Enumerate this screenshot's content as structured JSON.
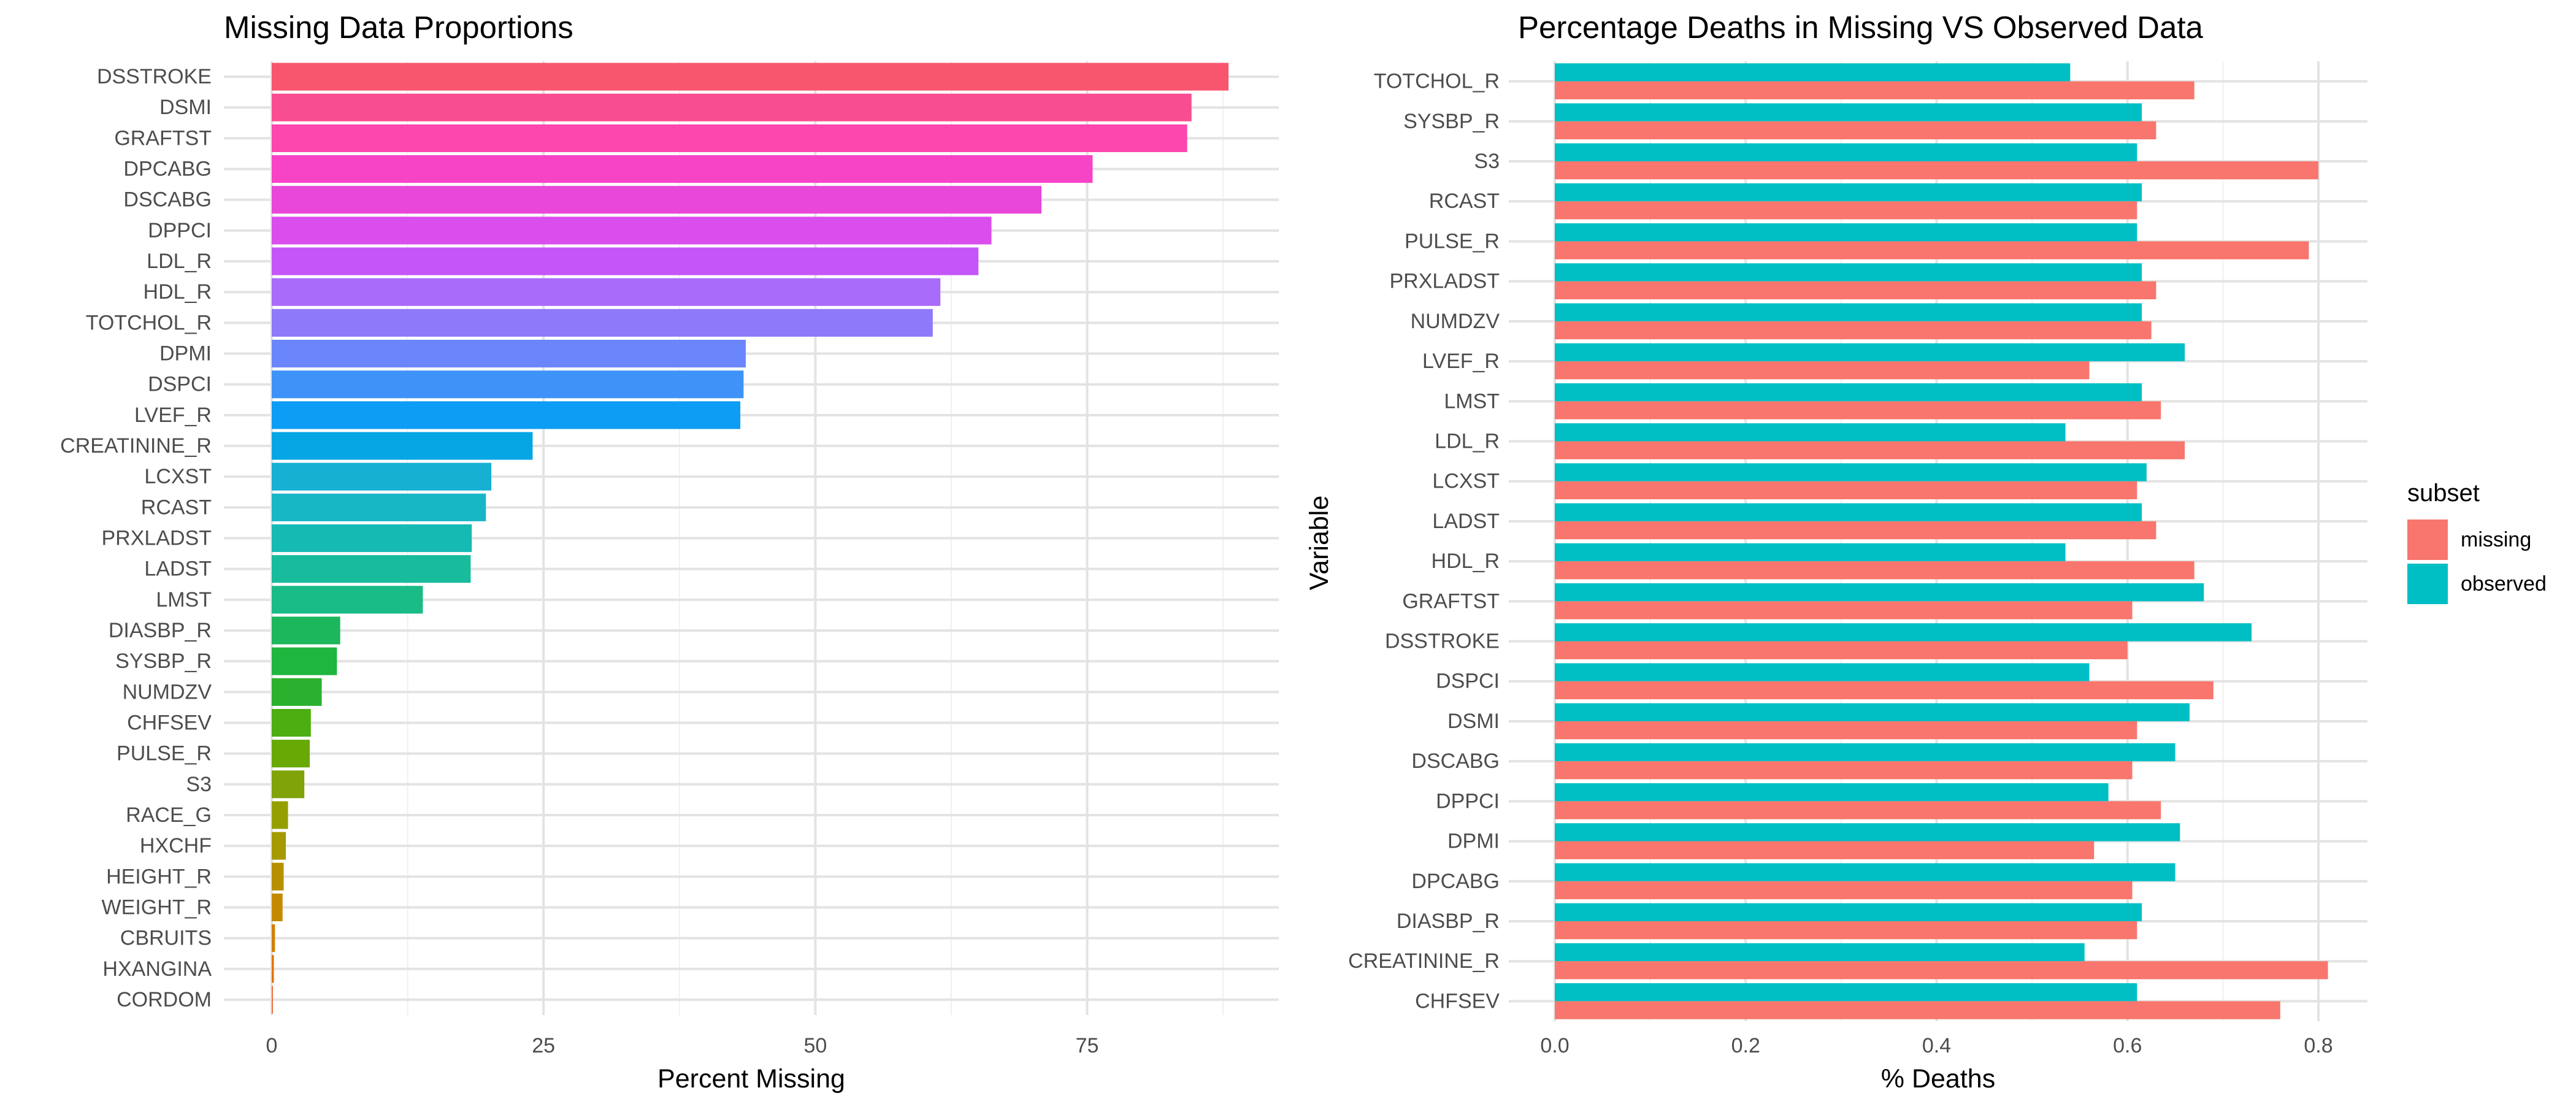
{
  "chart_data": [
    {
      "type": "bar",
      "orientation": "horizontal",
      "title": "Missing Data Proportions",
      "xlabel": "Percent Missing",
      "ylabel": "",
      "xlim": [
        0,
        92
      ],
      "xticks": [
        0,
        25,
        50,
        75
      ],
      "xtick_labels": [
        "0",
        "25",
        "50",
        "75"
      ],
      "grid": true,
      "fill": "per-category hue gradient",
      "categories": [
        "DSSTROKE",
        "DSMI",
        "GRAFTST",
        "DPCABG",
        "DSCABG",
        "DPPCI",
        "LDL_R",
        "HDL_R",
        "TOTCHOL_R",
        "DPMI",
        "DSPCI",
        "LVEF_R",
        "CREATININE_R",
        "LCXST",
        "RCAST",
        "PRXLADST",
        "LADST",
        "LMST",
        "DIASBP_R",
        "SYSBP_R",
        "NUMDZV",
        "CHFSEV",
        "PULSE_R",
        "S3",
        "RACE_G",
        "HXCHF",
        "HEIGHT_R",
        "WEIGHT_R",
        "CBRUITS",
        "HXANGINA",
        "CORDOM"
      ],
      "values": [
        88.0,
        84.6,
        84.2,
        75.5,
        70.8,
        66.2,
        65.0,
        61.5,
        60.8,
        43.6,
        43.4,
        43.1,
        24.0,
        20.2,
        19.7,
        18.4,
        18.3,
        13.9,
        6.3,
        6.0,
        4.6,
        3.6,
        3.5,
        3.0,
        1.5,
        1.3,
        1.1,
        1.0,
        0.3,
        0.2,
        0.1
      ],
      "colors": [
        "#F8566F",
        "#F94D92",
        "#FB47AE",
        "#F743C6",
        "#E946DA",
        "#D94EEC",
        "#C456F7",
        "#A96BFA",
        "#8F79FB",
        "#6B86FB",
        "#3F93F8",
        "#0D9DF4",
        "#06A6E4",
        "#16B0D3",
        "#18B7C6",
        "#15BAB3",
        "#18BC9C",
        "#19BB86",
        "#1CB65C",
        "#1FB63F",
        "#2BB12E",
        "#4CAE10",
        "#69A905",
        "#80A30A",
        "#95A000",
        "#A59A00",
        "#B69000",
        "#C38A00",
        "#D18000",
        "#E1750E",
        "#EE6F3C"
      ]
    },
    {
      "type": "bar",
      "orientation": "horizontal",
      "title": "Percentage Deaths in Missing VS Observed Data",
      "xlabel": "% Deaths",
      "ylabel": "Variable",
      "xlim": [
        0,
        0.85
      ],
      "xticks": [
        0,
        0.2,
        0.4,
        0.6,
        0.8
      ],
      "xtick_labels": [
        "0.0",
        "0.2",
        "0.4",
        "0.6",
        "0.8"
      ],
      "grid": true,
      "legend": {
        "title": "subset",
        "position": "right"
      },
      "categories": [
        "TOTCHOL_R",
        "SYSBP_R",
        "S3",
        "RCAST",
        "PULSE_R",
        "PRXLADST",
        "NUMDZV",
        "LVEF_R",
        "LMST",
        "LDL_R",
        "LCXST",
        "LADST",
        "HDL_R",
        "GRAFTST",
        "DSSTROKE",
        "DSPCI",
        "DSMI",
        "DSCABG",
        "DPPCI",
        "DPMI",
        "DPCABG",
        "DIASBP_R",
        "CREATININE_R",
        "CHFSEV"
      ],
      "series": [
        {
          "name": "missing",
          "color": "#F8766D",
          "values": [
            0.67,
            0.63,
            0.8,
            0.61,
            0.79,
            0.63,
            0.625,
            0.56,
            0.635,
            0.66,
            0.61,
            0.63,
            0.67,
            0.605,
            0.6,
            0.69,
            0.61,
            0.605,
            0.635,
            0.565,
            0.605,
            0.61,
            0.81,
            0.76
          ]
        },
        {
          "name": "observed",
          "color": "#00BFC4",
          "values": [
            0.54,
            0.615,
            0.61,
            0.615,
            0.61,
            0.615,
            0.615,
            0.66,
            0.615,
            0.535,
            0.62,
            0.615,
            0.535,
            0.68,
            0.73,
            0.56,
            0.665,
            0.65,
            0.58,
            0.655,
            0.65,
            0.615,
            0.555,
            0.61
          ]
        }
      ]
    }
  ]
}
